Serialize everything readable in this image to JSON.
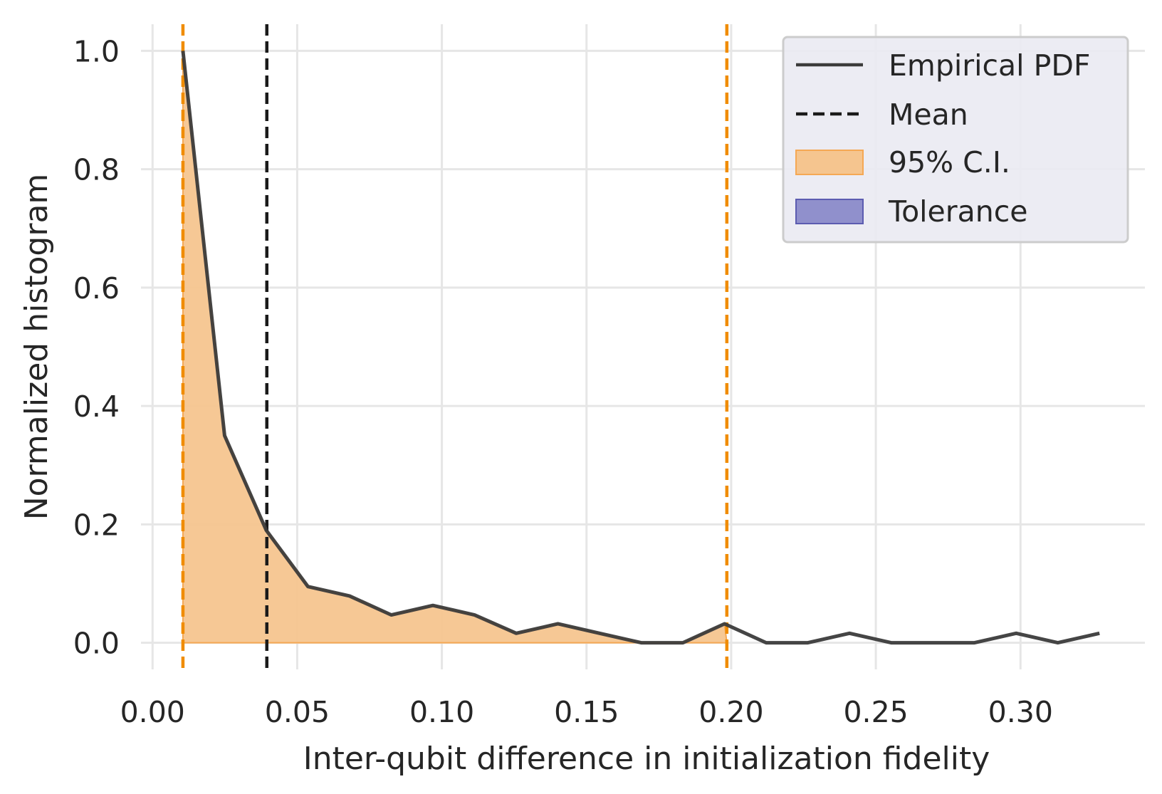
{
  "chart_data": {
    "type": "area",
    "xlabel": "Inter-qubit difference in initialization fidelity",
    "ylabel": "Normalized histogram",
    "xlim": [
      -0.004,
      0.343
    ],
    "ylim": [
      -0.045,
      1.045
    ],
    "x_ticks": [
      0.0,
      0.05,
      0.1,
      0.15,
      0.2,
      0.25,
      0.3
    ],
    "x_tick_labels": [
      "0.00",
      "0.05",
      "0.10",
      "0.15",
      "0.20",
      "0.25",
      "0.30"
    ],
    "y_ticks": [
      0.0,
      0.2,
      0.4,
      0.6,
      0.8,
      1.0
    ],
    "y_tick_labels": [
      "0.0",
      "0.2",
      "0.4",
      "0.6",
      "0.8",
      "1.0"
    ],
    "grid": true,
    "legend_position": "top-right",
    "series": [
      {
        "name": "Empirical PDF",
        "style": "line",
        "color": "#3b3b3b",
        "x": [
          0.0105,
          0.0249,
          0.0393,
          0.0537,
          0.0681,
          0.0825,
          0.0969,
          0.1113,
          0.1257,
          0.1401,
          0.1545,
          0.1689,
          0.1833,
          0.1977,
          0.2121,
          0.2265,
          0.2409,
          0.2553,
          0.2697,
          0.2841,
          0.2985,
          0.3129,
          0.3273
        ],
        "y": [
          1.0,
          0.35,
          0.19,
          0.095,
          0.079,
          0.047,
          0.063,
          0.047,
          0.016,
          0.032,
          0.016,
          0.0,
          0.0,
          0.032,
          0.0,
          0.0,
          0.016,
          0.0,
          0.0,
          0.0,
          0.016,
          0.0,
          0.016
        ]
      },
      {
        "name": "Mean",
        "style": "dashed-vline",
        "color": "#1a1a1a",
        "x": 0.0395
      },
      {
        "name": "95% C.I.",
        "style": "fill",
        "color": "#f5c58f",
        "range": [
          0.0105,
          0.1985
        ]
      },
      {
        "name": "Tolerance",
        "style": "fill",
        "color": "#9090cc",
        "range": null
      }
    ],
    "ci_bound_lines": {
      "color": "#f08c00",
      "x": [
        0.0105,
        0.1985
      ]
    }
  }
}
